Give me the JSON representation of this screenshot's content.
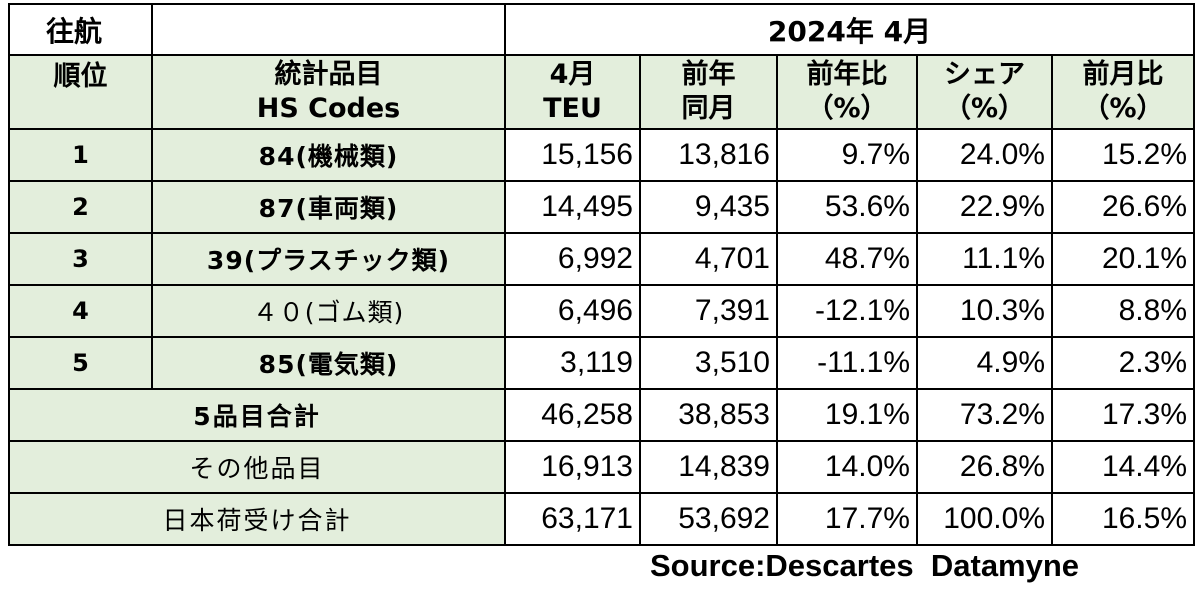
{
  "header": {
    "direction": "往航",
    "period": "2024年 4月"
  },
  "columns": {
    "rank": "順位",
    "item_line1": "統計品目",
    "item_line2": "HS Codes",
    "teu_line1": "4月",
    "teu_line2": "TEU",
    "prev_line1": "前年",
    "prev_line2": "同月",
    "yoy_line1": "前年比",
    "yoy_line2": "（%）",
    "share_line1": "シェア",
    "share_line2": "（%）",
    "mom_line1": "前月比",
    "mom_line2": "（%）"
  },
  "chart_data": {
    "type": "table",
    "rows": [
      {
        "rank": "1",
        "item": "84(機械類)",
        "teu": "15,156",
        "prev": "13,816",
        "yoy": "9.7%",
        "share": "24.0%",
        "mom": "15.2%"
      },
      {
        "rank": "2",
        "item": "87(車両類)",
        "teu": "14,495",
        "prev": "9,435",
        "yoy": "53.6%",
        "share": "22.9%",
        "mom": "26.6%"
      },
      {
        "rank": "3",
        "item": "39(プラスチック類)",
        "teu": "6,992",
        "prev": "4,701",
        "yoy": "48.7%",
        "share": "11.1%",
        "mom": "20.1%"
      },
      {
        "rank": "4",
        "item": "４０(ゴム類)",
        "teu": "6,496",
        "prev": "7,391",
        "yoy": "-12.1%",
        "share": "10.3%",
        "mom": "8.8%"
      },
      {
        "rank": "5",
        "item": "85(電気類)",
        "teu": "3,119",
        "prev": "3,510",
        "yoy": "-11.1%",
        "share": "4.9%",
        "mom": "2.3%"
      }
    ],
    "totals": [
      {
        "label": "5品目合計",
        "teu": "46,258",
        "prev": "38,853",
        "yoy": "19.1%",
        "share": "73.2%",
        "mom": "17.3%"
      },
      {
        "label": "その他品目",
        "teu": "16,913",
        "prev": "14,839",
        "yoy": "14.0%",
        "share": "26.8%",
        "mom": "14.4%"
      },
      {
        "label": "日本荷受け合計",
        "teu": "63,171",
        "prev": "53,692",
        "yoy": "17.7%",
        "share": "100.0%",
        "mom": "16.5%"
      }
    ]
  },
  "source": "Source:Descartes  Datamyne"
}
